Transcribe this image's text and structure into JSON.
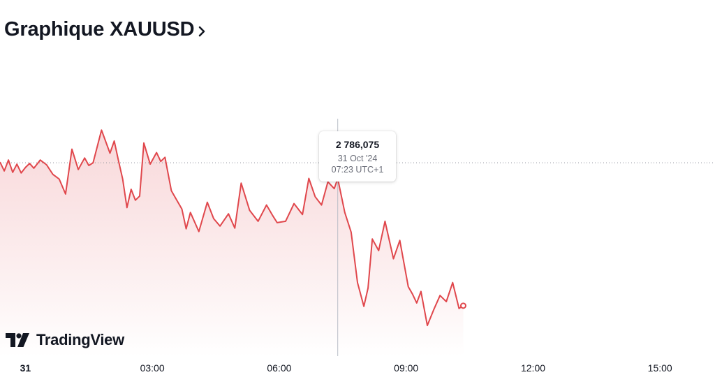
{
  "header": {
    "title": "Graphique XAUUSD",
    "chevron_icon": "chevron-right-icon"
  },
  "tooltip": {
    "value": "2 786,075",
    "date": "31 Oct '24",
    "time": "07:23 UTC+1"
  },
  "branding": {
    "name": "TradingView",
    "icon": "tradingview-logo-icon"
  },
  "colors": {
    "line": "#e0474c",
    "fill_top": "#f7d2d4",
    "text": "#131722",
    "muted": "#6a6d78"
  },
  "chart_data": {
    "type": "area",
    "x_tick_labels": [
      "31",
      "03:00",
      "06:00",
      "09:00",
      "12:00",
      "15:00"
    ],
    "x_tick_hours": [
      0,
      3,
      6,
      9,
      12,
      15
    ],
    "xlim_hours": [
      -0.6,
      16.3
    ],
    "ylim": [
      2760,
      2800
    ],
    "grid": false,
    "reference_line": 2788.4,
    "crosshair": {
      "time": "07:23",
      "hour": 7.383,
      "value": 2786.075
    },
    "series": [
      {
        "x": [
          -0.6,
          -0.5,
          -0.4,
          -0.3,
          -0.2,
          -0.1,
          0,
          0.1,
          0.2,
          0.35,
          0.5,
          0.65,
          0.8,
          0.95,
          1.1,
          1.25,
          1.4,
          1.5,
          1.6,
          1.8,
          2.0,
          2.1,
          2.2,
          2.3,
          2.4,
          2.5,
          2.6,
          2.7,
          2.8,
          2.95,
          3.1,
          3.2,
          3.3,
          3.45,
          3.55,
          3.7,
          3.8,
          3.9,
          4.1,
          4.3,
          4.45,
          4.6,
          4.8,
          4.95,
          5.1,
          5.3,
          5.5,
          5.7,
          5.85,
          5.95,
          6.15,
          6.35,
          6.55,
          6.7,
          6.85,
          7.0,
          7.15,
          7.3,
          7.383,
          7.55,
          7.7,
          7.85,
          8.0,
          8.1,
          8.2,
          8.35,
          8.5,
          8.7,
          8.85,
          9.05,
          9.15,
          9.25,
          9.35,
          9.5,
          9.65,
          9.8,
          9.95,
          10.1,
          10.25,
          10.35
        ],
        "y": [
          2788.5,
          2787.2,
          2788.8,
          2787.0,
          2788.2,
          2786.9,
          2787.7,
          2788.3,
          2787.6,
          2788.8,
          2788.1,
          2786.7,
          2786.0,
          2783.8,
          2790.4,
          2787.4,
          2789.1,
          2788.0,
          2788.4,
          2793.2,
          2789.8,
          2791.6,
          2788.7,
          2786.0,
          2781.8,
          2784.5,
          2782.9,
          2783.5,
          2791.3,
          2788.2,
          2789.9,
          2788.6,
          2789.2,
          2784.3,
          2783.2,
          2781.6,
          2778.7,
          2781.1,
          2778.3,
          2782.6,
          2780.2,
          2779.1,
          2780.9,
          2778.8,
          2785.4,
          2781.4,
          2779.8,
          2782.2,
          2780.6,
          2779.6,
          2779.8,
          2782.4,
          2780.8,
          2786.1,
          2783.4,
          2782.2,
          2785.6,
          2784.6,
          2786.08,
          2781.1,
          2778.2,
          2770.8,
          2767.3,
          2770.0,
          2777.2,
          2775.5,
          2779.8,
          2774.3,
          2777.0,
          2770.2,
          2769.1,
          2767.8,
          2769.5,
          2764.5,
          2766.8,
          2768.9,
          2768.0,
          2770.8,
          2767.0,
          2767.4
        ]
      }
    ]
  }
}
